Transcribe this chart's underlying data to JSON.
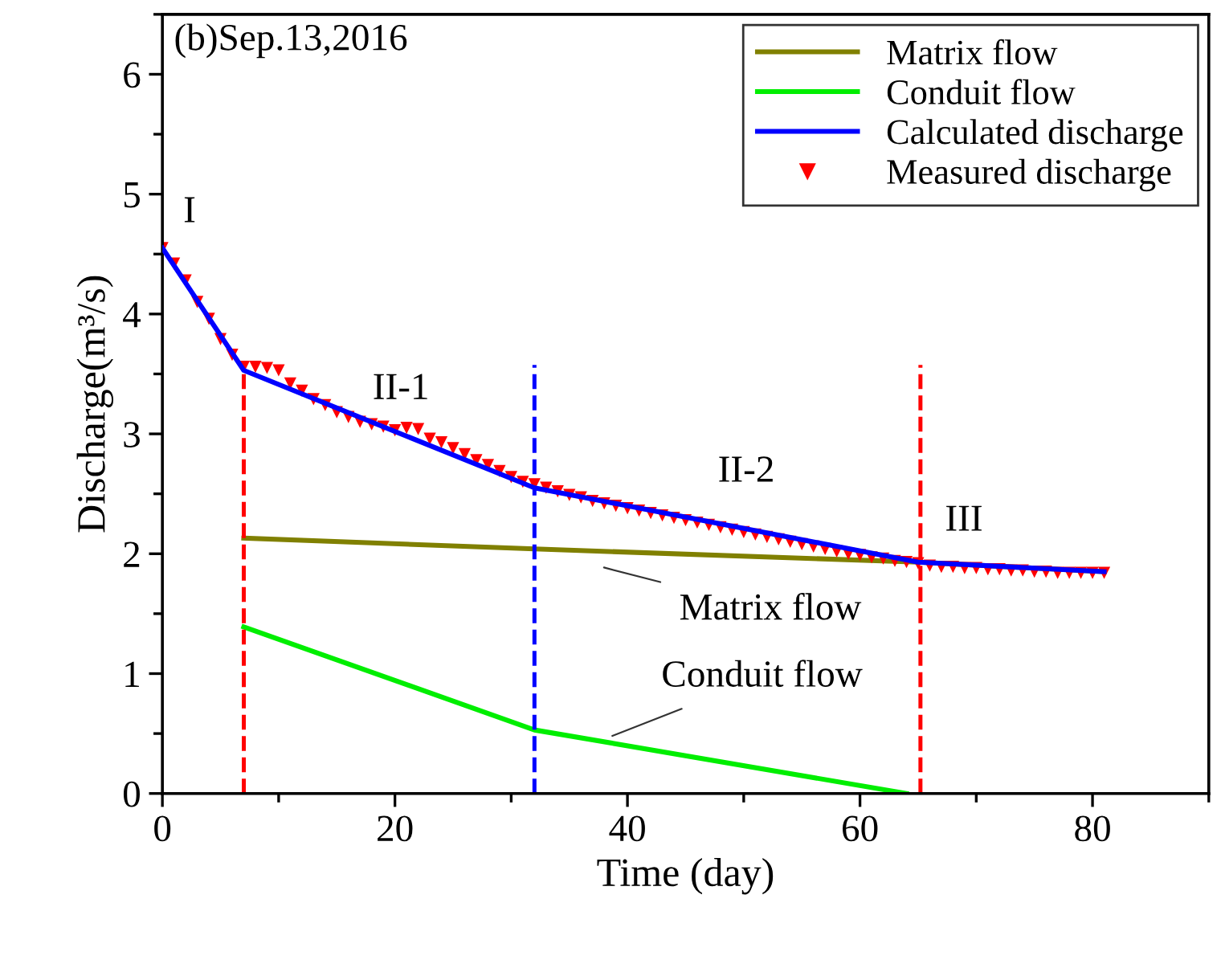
{
  "chart_data": {
    "type": "line",
    "xlabel": "Time (day)",
    "ylabel": "Discharge(m³/s)",
    "xlim": [
      0,
      90
    ],
    "ylim": [
      0,
      6.5
    ],
    "xticks": [
      0,
      20,
      40,
      60,
      80
    ],
    "yticks": [
      0,
      1,
      2,
      3,
      4,
      5,
      6
    ],
    "grid": false,
    "legend": "top right",
    "line_style": "solid",
    "series": [
      {
        "name": "Matrix flow",
        "color": "#808000",
        "marker": "none",
        "x": [
          7,
          32,
          65,
          81
        ],
        "values": [
          2.13,
          2.04,
          1.93,
          1.85
        ]
      },
      {
        "name": "Conduit flow",
        "color": "#00ee00",
        "marker": "none",
        "x": [
          7,
          32,
          64
        ],
        "values": [
          1.39,
          0.53,
          0
        ]
      },
      {
        "name": "Calculated discharge",
        "color": "#0000ff",
        "marker": "none",
        "x": [
          0,
          7,
          32,
          65,
          81
        ],
        "values": [
          4.55,
          3.53,
          2.55,
          1.93,
          1.85
        ]
      },
      {
        "name": "Measured discharge",
        "color": "#ff0000",
        "type": "scatter",
        "marker": "triangle",
        "x": [
          0,
          1,
          2,
          3,
          4,
          5,
          6,
          7,
          8,
          9,
          10,
          11,
          12,
          13,
          14,
          15,
          16,
          17,
          18,
          19,
          20,
          21,
          22,
          23,
          24,
          25,
          26,
          27,
          28,
          29,
          30,
          31,
          32,
          33,
          34,
          35,
          36,
          37,
          38,
          39,
          40,
          41,
          42,
          43,
          44,
          45,
          46,
          47,
          48,
          49,
          50,
          51,
          52,
          53,
          54,
          55,
          56,
          57,
          58,
          59,
          60,
          61,
          62,
          63,
          64,
          65,
          66,
          67,
          68,
          69,
          70,
          71,
          72,
          73,
          74,
          75,
          76,
          77,
          78,
          79,
          80,
          81
        ],
        "values": [
          4.55,
          4.42,
          4.28,
          4.1,
          3.96,
          3.79,
          3.66,
          3.56,
          3.56,
          3.55,
          3.53,
          3.42,
          3.36,
          3.29,
          3.24,
          3.18,
          3.14,
          3.1,
          3.08,
          3.06,
          3.03,
          3.05,
          3.04,
          2.96,
          2.93,
          2.88,
          2.83,
          2.78,
          2.74,
          2.69,
          2.64,
          2.6,
          2.58,
          2.55,
          2.52,
          2.49,
          2.47,
          2.44,
          2.42,
          2.4,
          2.38,
          2.36,
          2.34,
          2.32,
          2.3,
          2.28,
          2.26,
          2.24,
          2.22,
          2.2,
          2.18,
          2.16,
          2.14,
          2.12,
          2.1,
          2.08,
          2.06,
          2.04,
          2.02,
          2.0,
          1.99,
          1.97,
          1.96,
          1.94,
          1.93,
          1.92,
          1.9,
          1.89,
          1.89,
          1.88,
          1.88,
          1.87,
          1.87,
          1.86,
          1.86,
          1.85,
          1.85,
          1.84,
          1.84,
          1.84,
          1.84,
          1.84
        ]
      }
    ],
    "ref_lines": [
      {
        "axis": "x",
        "value": 7,
        "color": "#ff0000",
        "line_style": "dashed"
      },
      {
        "axis": "x",
        "value": 32,
        "color": "#0000ff",
        "line_style": "dashed"
      },
      {
        "axis": "x",
        "value": 65.2,
        "color": "#ff0000",
        "line_style": "dashed"
      }
    ],
    "annotations": [
      "(b)Sep.13,2016",
      "I",
      "II-1",
      "II-2",
      "III",
      "Matrix flow",
      {
        "text": "Conduit flow",
        "x": 38.7,
        "y": 0.48
      }
    ]
  }
}
